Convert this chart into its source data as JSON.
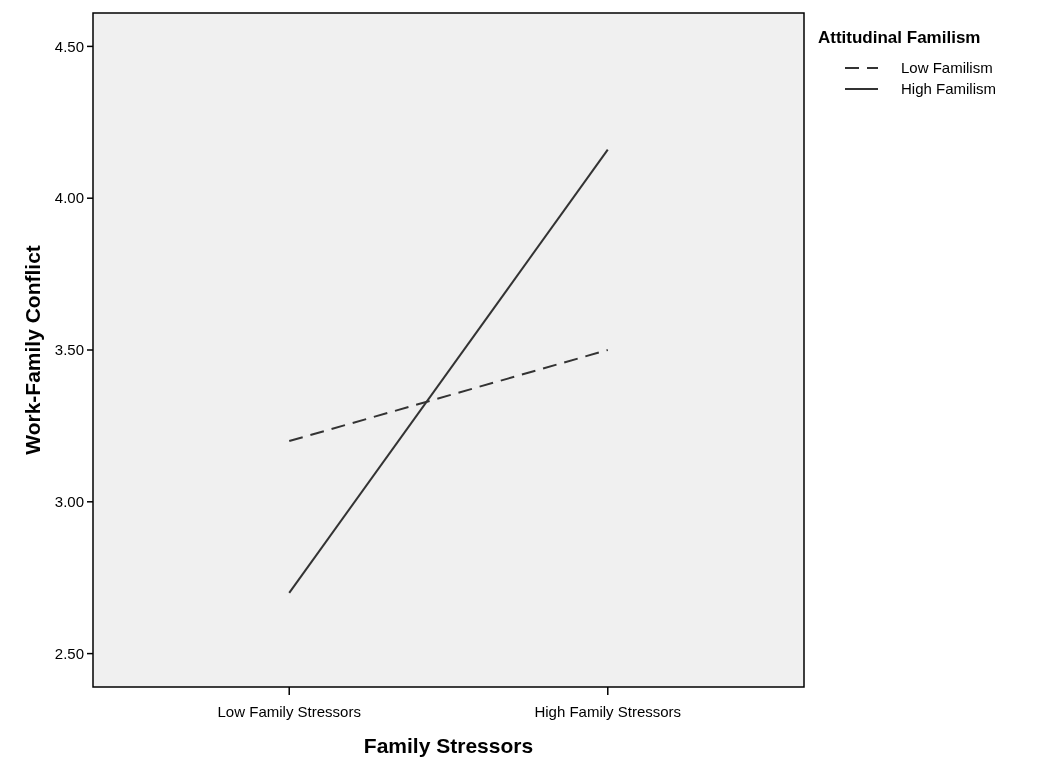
{
  "chart_data": {
    "type": "line",
    "xlabel": "Family Stressors",
    "ylabel": "Work-Family Conflict",
    "legend_title": "Attitudinal Familism",
    "categories": [
      "Low Family Stressors",
      "High Family Stressors"
    ],
    "series": [
      {
        "name": "Low Familism",
        "color": "#333333",
        "line_style": "dashed",
        "values": [
          3.2,
          3.5
        ]
      },
      {
        "name": "High Familism",
        "color": "#333333",
        "line_style": "solid",
        "values": [
          2.7,
          4.16
        ]
      }
    ],
    "ylim": [
      2.39,
      4.61
    ],
    "yticks": [
      {
        "value": 2.5,
        "label": "2.50"
      },
      {
        "value": 3,
        "label": "3.00"
      },
      {
        "value": 3.5,
        "label": "3.50"
      },
      {
        "value": 4,
        "label": "4.00"
      },
      {
        "value": 4.5,
        "label": "4.50"
      }
    ],
    "grid": false,
    "legend": "top right",
    "marker": "none"
  }
}
